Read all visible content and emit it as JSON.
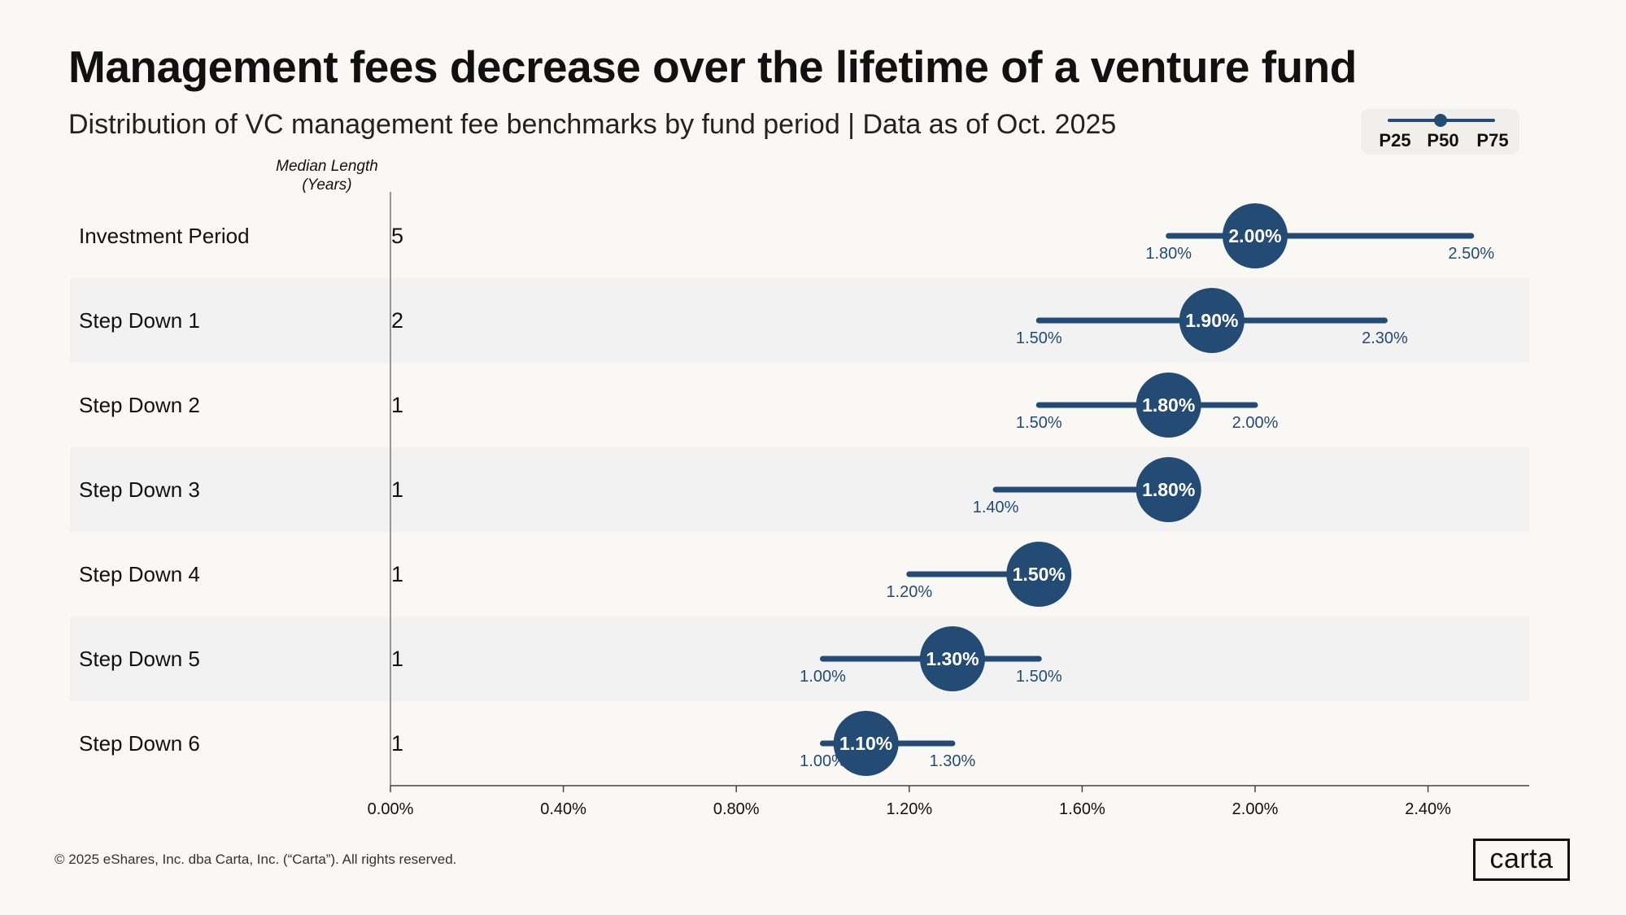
{
  "title": "Management fees decrease over the lifetime of a venture fund",
  "subtitle": "Distribution of VC management fee benchmarks by fund period | Data as of Oct. 2025",
  "legend": {
    "p25": "P25",
    "p50": "P50",
    "p75": "P75"
  },
  "column_header": {
    "line1": "Median Length",
    "line2": "(Years)"
  },
  "footer": "© 2025 eShares, Inc. dba Carta, Inc. (“Carta”). All rights reserved.",
  "logo_text": "carta",
  "colors": {
    "accent": "#234b74",
    "background": "#faf8f4",
    "band": "#f2f2f2",
    "axis": "#777777",
    "label": "#234b74"
  },
  "chart_data": {
    "type": "dot-range",
    "title": "Management fees decrease over the lifetime of a venture fund",
    "xlabel": "",
    "ylabel": "",
    "xlim": [
      0,
      2.64
    ],
    "x_ticks": [
      0,
      0.4,
      0.8,
      1.2,
      1.6,
      2.0,
      2.4
    ],
    "x_tick_labels": [
      "0.00%",
      "0.40%",
      "0.80%",
      "1.20%",
      "1.60%",
      "2.00%",
      "2.40%"
    ],
    "rows": [
      {
        "period": "Investment Period",
        "median_length": "5",
        "p25": 1.8,
        "p50": 2.0,
        "p75": 2.5,
        "p25_label": "1.80%",
        "p50_label": "2.00%",
        "p75_label": "2.50%"
      },
      {
        "period": "Step Down 1",
        "median_length": "2",
        "p25": 1.5,
        "p50": 1.9,
        "p75": 2.3,
        "p25_label": "1.50%",
        "p50_label": "1.90%",
        "p75_label": "2.30%"
      },
      {
        "period": "Step Down 2",
        "median_length": "1",
        "p25": 1.5,
        "p50": 1.8,
        "p75": 2.0,
        "p25_label": "1.50%",
        "p50_label": "1.80%",
        "p75_label": "2.00%"
      },
      {
        "period": "Step Down 3",
        "median_length": "1",
        "p25": 1.4,
        "p50": 1.8,
        "p75": 1.8,
        "p25_label": "1.40%",
        "p50_label": "1.80%",
        "p75_label": null
      },
      {
        "period": "Step Down 4",
        "median_length": "1",
        "p25": 1.2,
        "p50": 1.5,
        "p75": 1.5,
        "p25_label": "1.20%",
        "p50_label": "1.50%",
        "p75_label": null
      },
      {
        "period": "Step Down 5",
        "median_length": "1",
        "p25": 1.0,
        "p50": 1.3,
        "p75": 1.5,
        "p25_label": "1.00%",
        "p50_label": "1.30%",
        "p75_label": "1.50%"
      },
      {
        "period": "Step Down 6",
        "median_length": "1",
        "p25": 1.0,
        "p50": 1.1,
        "p75": 1.3,
        "p25_label": "1.00%",
        "p50_label": "1.10%",
        "p75_label": "1.30%"
      }
    ]
  }
}
